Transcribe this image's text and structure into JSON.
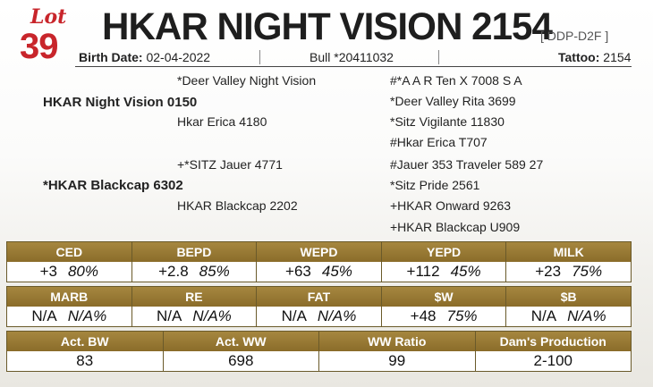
{
  "lot": {
    "word": "Lot",
    "number": "39"
  },
  "title": "HKAR NIGHT VISION 2154",
  "registration": "[ DDP-D2F ]",
  "info": {
    "birth_label": "Birth Date:",
    "birth_value": "02-04-2022",
    "bull_label": "Bull",
    "bull_value": "*20411032",
    "tattoo_label": "Tattoo:",
    "tattoo_value": "2154"
  },
  "pedigree": {
    "sire": "HKAR Night Vision 0150",
    "sire_sire": "*Deer Valley Night Vision",
    "sire_dam": "Hkar Erica 4180",
    "dam": "*HKAR Blackcap 6302",
    "dam_sire": "+*SITZ Jauer 4771",
    "dam_dam": "HKAR Blackcap 2202",
    "gg": [
      "#*A A R Ten X 7008 S A",
      "*Deer Valley Rita 3699",
      "*Sitz Vigilante 11830",
      "#Hkar Erica T707",
      "#Jauer 353 Traveler 589 27",
      "*Sitz Pride 2561",
      "+HKAR Onward 9263",
      "+HKAR Blackcap U909"
    ]
  },
  "epd1": [
    {
      "label": "CED",
      "value": "+3",
      "acc": "80%"
    },
    {
      "label": "BEPD",
      "value": "+2.8",
      "acc": "85%"
    },
    {
      "label": "WEPD",
      "value": "+63",
      "acc": "45%"
    },
    {
      "label": "YEPD",
      "value": "+112",
      "acc": "45%"
    },
    {
      "label": "MILK",
      "value": "+23",
      "acc": "75%"
    }
  ],
  "epd2": [
    {
      "label": "MARB",
      "value": "N/A",
      "acc": "N/A%"
    },
    {
      "label": "RE",
      "value": "N/A",
      "acc": "N/A%"
    },
    {
      "label": "FAT",
      "value": "N/A",
      "acc": "N/A%"
    },
    {
      "label": "$W",
      "value": "+48",
      "acc": "75%"
    },
    {
      "label": "$B",
      "value": "N/A",
      "acc": "N/A%"
    }
  ],
  "perf": [
    {
      "label": "Act. BW",
      "value": "83"
    },
    {
      "label": "Act. WW",
      "value": "698"
    },
    {
      "label": "WW Ratio",
      "value": "99"
    },
    {
      "label": "Dam's Production",
      "value": "2-100"
    }
  ]
}
